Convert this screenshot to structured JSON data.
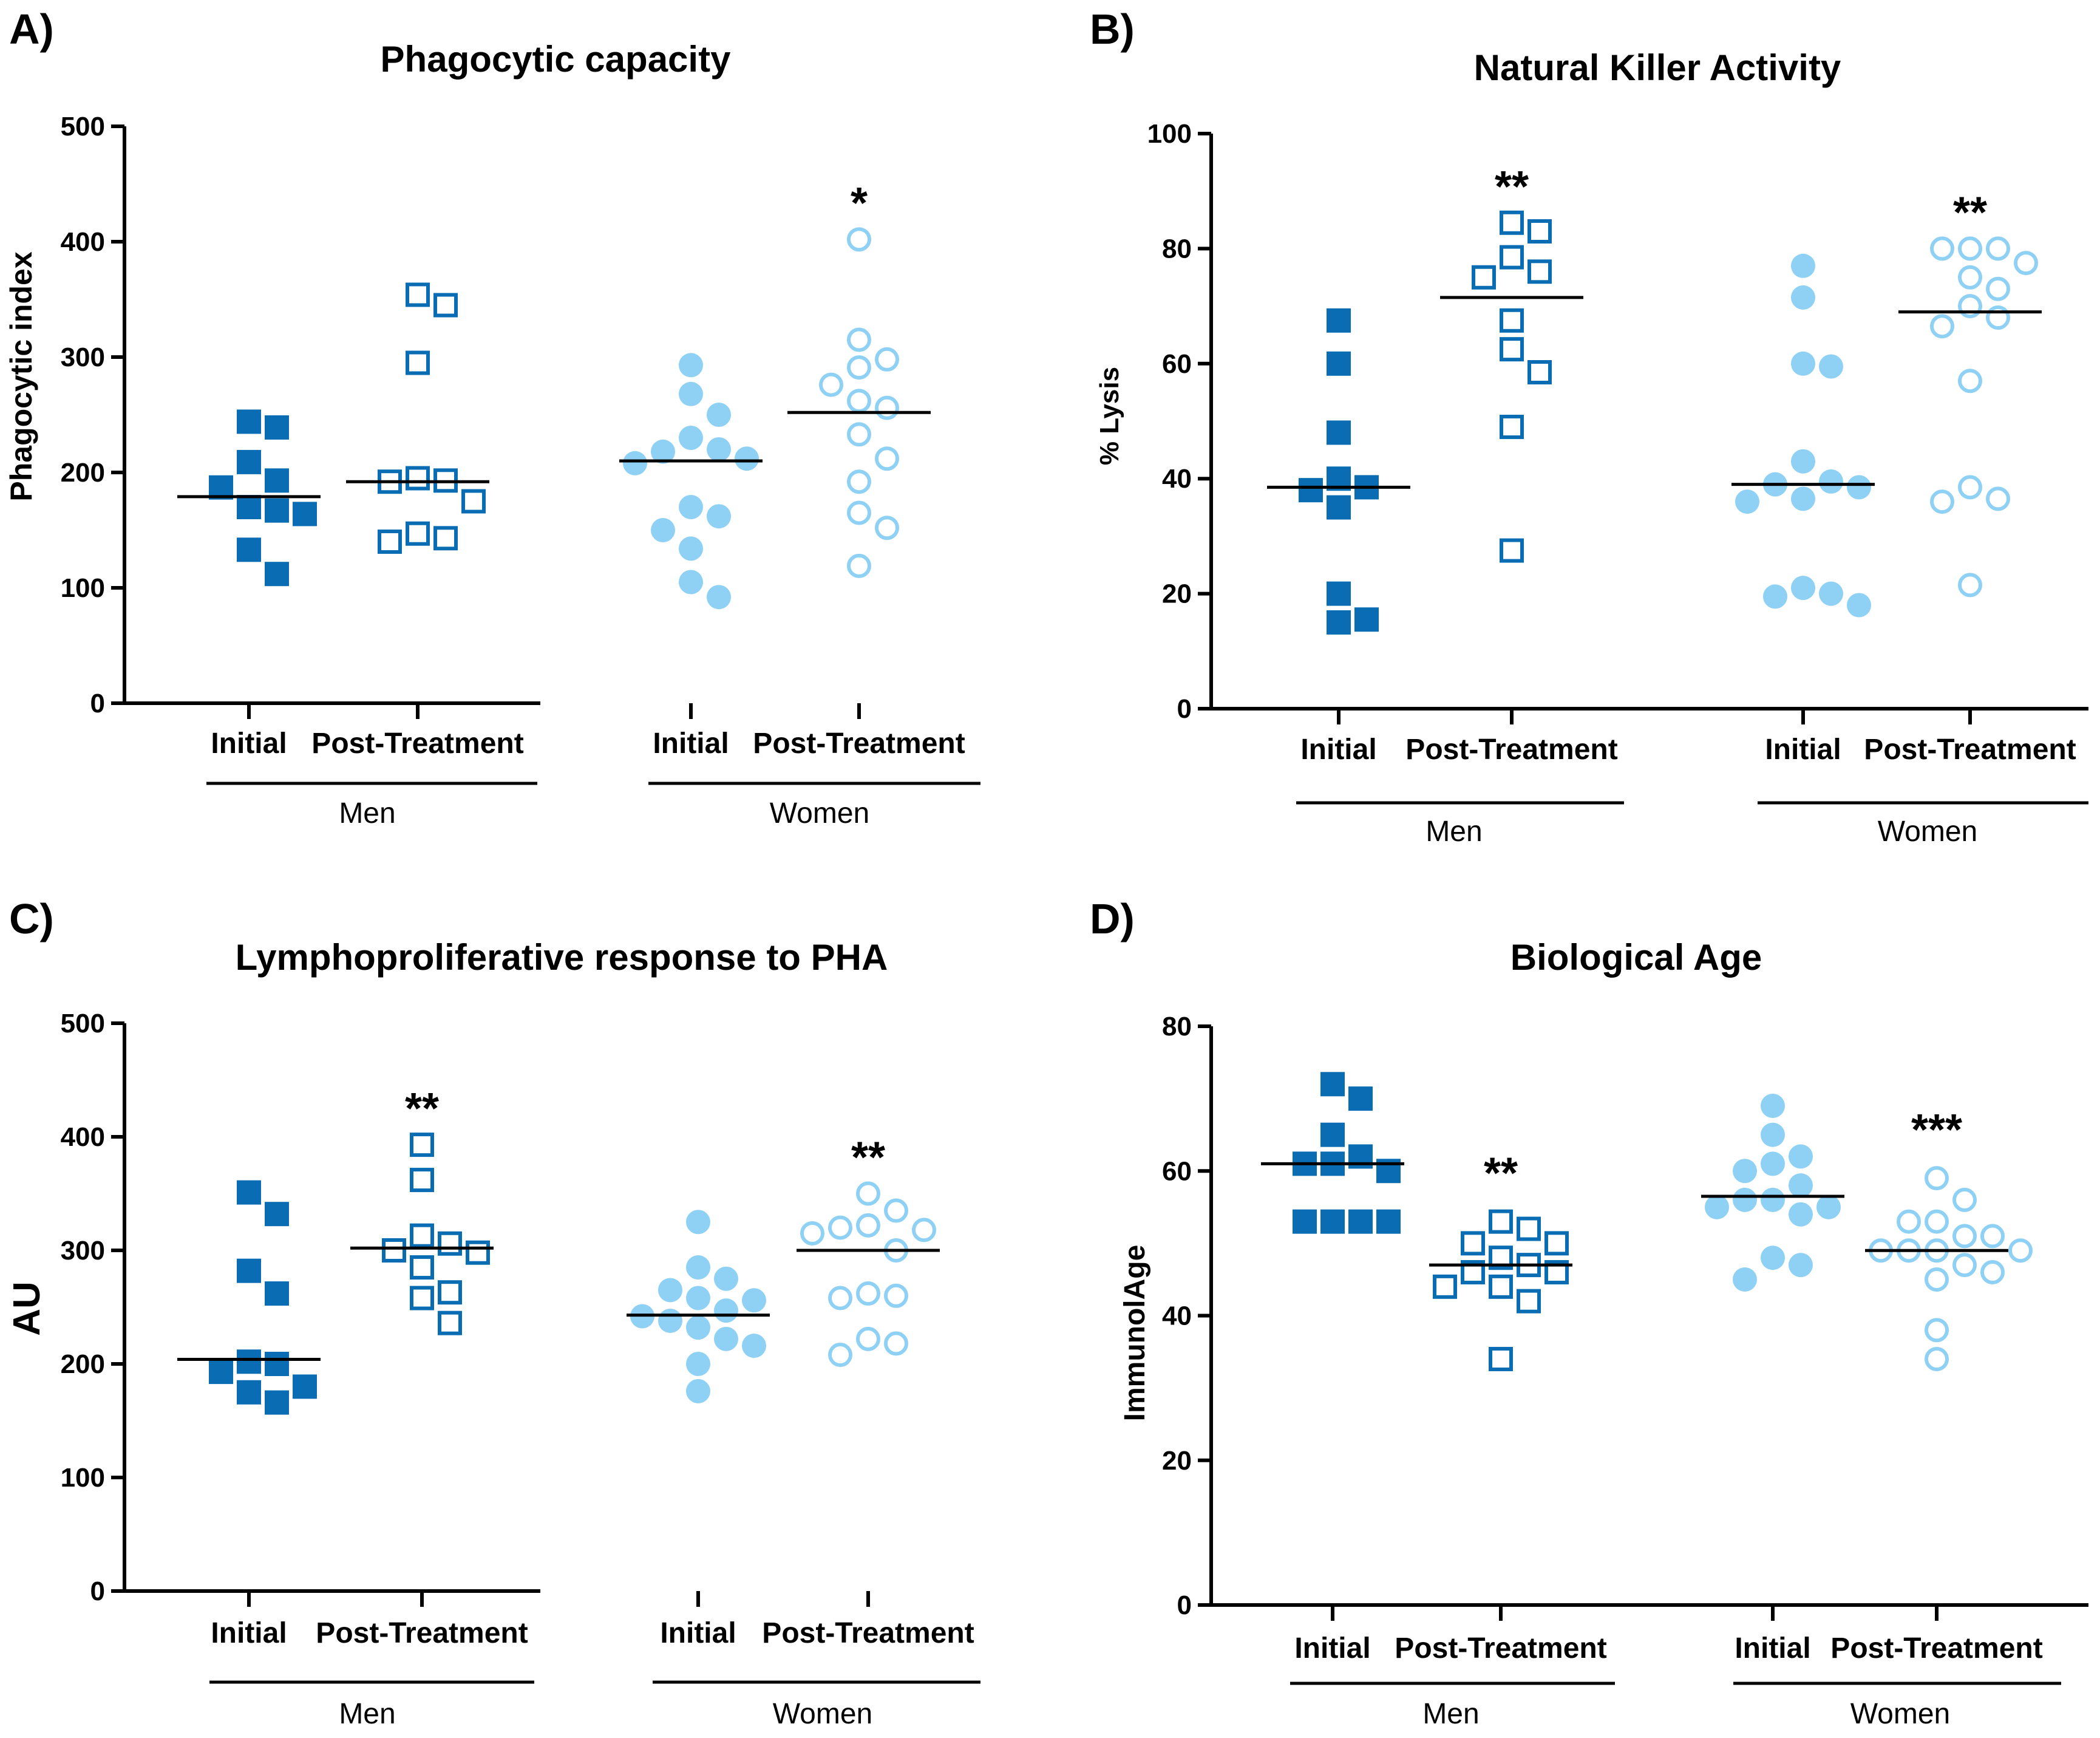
{
  "colors": {
    "men": "#0a6db4",
    "women": "#8ed1f5",
    "axis": "#000000",
    "mean_line": "#000000"
  },
  "chart_data": [
    {
      "type": "scatter",
      "panel_label": "A)",
      "title": "Phagocytic capacity",
      "ylabel": "Phagocytic index",
      "ylim": [
        0,
        500
      ],
      "yticks": [
        "0",
        "100",
        "200",
        "300",
        "400",
        "500"
      ],
      "categories": [
        "Initial",
        "Post-Treatment",
        "Initial",
        "Post-Treatment"
      ],
      "groups": [
        {
          "name": "Men",
          "span": [
            0,
            1
          ]
        },
        {
          "name": "Women",
          "span": [
            2,
            3
          ]
        }
      ],
      "series": [
        {
          "name": "Men Initial",
          "marker": "square-filled",
          "color_key": "men",
          "mean": 179,
          "significance": "",
          "values": [
            244,
            239,
            209,
            193,
            187,
            167,
            170,
            164,
            133,
            112
          ]
        },
        {
          "name": "Men Post-Treatment",
          "marker": "square-open",
          "color_key": "men",
          "mean": 192,
          "significance": "",
          "values": [
            354,
            345,
            295,
            195,
            193,
            192,
            175,
            147,
            143,
            140
          ]
        },
        {
          "name": "Women Initial",
          "marker": "circle-filled",
          "color_key": "women",
          "mean": 210,
          "significance": "",
          "values": [
            293,
            268,
            250,
            230,
            220,
            218,
            212,
            208,
            170,
            162,
            150,
            134,
            105,
            92
          ]
        },
        {
          "name": "Women Post-Treatment",
          "marker": "circle-open",
          "color_key": "women",
          "mean": 252,
          "significance": "*",
          "values": [
            402,
            315,
            298,
            291,
            276,
            262,
            256,
            233,
            212,
            192,
            165,
            152,
            119
          ]
        }
      ]
    },
    {
      "type": "scatter",
      "panel_label": "B)",
      "title": "Natural Killer Activity",
      "ylabel": "% Lysis",
      "ylim": [
        0,
        100
      ],
      "yticks": [
        "0",
        "20",
        "40",
        "60",
        "80",
        "100"
      ],
      "categories": [
        "Initial",
        "Post-Treatment",
        "Initial",
        "Post-Treatment"
      ],
      "groups": [
        {
          "name": "Men",
          "span": [
            0,
            1
          ]
        },
        {
          "name": "Women",
          "span": [
            2,
            3
          ]
        }
      ],
      "series": [
        {
          "name": "Men Initial",
          "marker": "square-filled",
          "color_key": "men",
          "mean": 38.5,
          "significance": "",
          "values": [
            67.5,
            60,
            48,
            40,
            38.5,
            38,
            35,
            20,
            15.5,
            15
          ]
        },
        {
          "name": "Men Post-Treatment",
          "marker": "square-open",
          "color_key": "men",
          "mean": 71.5,
          "significance": "**",
          "values": [
            84.5,
            83,
            78.5,
            76,
            75,
            67.5,
            62.5,
            58.5,
            49,
            27.5
          ]
        },
        {
          "name": "Women Initial",
          "marker": "circle-filled",
          "color_key": "women",
          "mean": 39,
          "significance": "",
          "values": [
            77,
            71.5,
            60,
            59.5,
            43,
            39.5,
            39,
            38.5,
            36.5,
            36,
            21,
            20,
            19.5,
            18
          ]
        },
        {
          "name": "Women Post-Treatment",
          "marker": "circle-open",
          "color_key": "women",
          "mean": 69,
          "significance": "**",
          "values": [
            80,
            80,
            80,
            77.5,
            75,
            73,
            70,
            68,
            66.5,
            57,
            38.5,
            36.5,
            36,
            21.5
          ]
        }
      ]
    },
    {
      "type": "scatter",
      "panel_label": "C)",
      "title": "Lymphoproliferative response to PHA",
      "ylabel": "AU",
      "ylim": [
        0,
        500
      ],
      "yticks": [
        "0",
        "100",
        "200",
        "300",
        "400",
        "500"
      ],
      "categories": [
        "Initial",
        "Post-Treatment",
        "Initial",
        "Post-Treatment"
      ],
      "groups": [
        {
          "name": "Men",
          "span": [
            0,
            1
          ]
        },
        {
          "name": "Women",
          "span": [
            2,
            3
          ]
        }
      ],
      "series": [
        {
          "name": "Men Initial",
          "marker": "square-filled",
          "color_key": "men",
          "mean": 204,
          "significance": "",
          "values": [
            351,
            332,
            282,
            262,
            202,
            200,
            193,
            180,
            175,
            166
          ]
        },
        {
          "name": "Men Post-Treatment",
          "marker": "square-open",
          "color_key": "men",
          "mean": 302,
          "significance": "**",
          "values": [
            393,
            362,
            313,
            306,
            300,
            298,
            285,
            263,
            258,
            236
          ]
        },
        {
          "name": "Women Initial",
          "marker": "circle-filled",
          "color_key": "women",
          "mean": 243,
          "significance": "",
          "values": [
            325,
            285,
            275,
            265,
            258,
            256,
            247,
            242,
            238,
            232,
            222,
            216,
            200,
            176
          ]
        },
        {
          "name": "Women Post-Treatment",
          "marker": "circle-open",
          "color_key": "women",
          "mean": 300,
          "significance": "**",
          "values": [
            350,
            335,
            322,
            320,
            318,
            315,
            300,
            262,
            260,
            258,
            222,
            218,
            208
          ]
        }
      ]
    },
    {
      "type": "scatter",
      "panel_label": "D)",
      "title": "Biological Age",
      "ylabel": "ImmunolAge",
      "ylim": [
        0,
        80
      ],
      "yticks": [
        "0",
        "20",
        "40",
        "60",
        "80"
      ],
      "categories": [
        "Initial",
        "Post-Treatment",
        "Initial",
        "Post-Treatment"
      ],
      "groups": [
        {
          "name": "Men",
          "span": [
            0,
            1
          ]
        },
        {
          "name": "Women",
          "span": [
            2,
            3
          ]
        }
      ],
      "series": [
        {
          "name": "Men Initial",
          "marker": "square-filled",
          "color_key": "men",
          "mean": 61,
          "significance": "",
          "values": [
            72,
            70,
            65,
            62,
            61,
            61,
            60,
            53,
            53,
            53,
            53
          ]
        },
        {
          "name": "Men Post-Treatment",
          "marker": "square-open",
          "color_key": "men",
          "mean": 47,
          "significance": "**",
          "values": [
            53,
            52,
            50,
            50,
            48,
            47,
            46,
            46,
            44,
            44,
            42,
            34
          ]
        },
        {
          "name": "Women Initial",
          "marker": "circle-filled",
          "color_key": "women",
          "mean": 56.5,
          "significance": "",
          "values": [
            69,
            65,
            62,
            61,
            60,
            58,
            56,
            56,
            55,
            55,
            54,
            48,
            47,
            45
          ]
        },
        {
          "name": "Women Post-Treatment",
          "marker": "circle-open",
          "color_key": "women",
          "mean": 49,
          "significance": "***",
          "values": [
            59,
            56,
            53,
            53,
            51,
            51,
            49,
            49,
            49,
            49,
            47,
            46,
            45,
            38,
            34
          ]
        }
      ]
    }
  ]
}
